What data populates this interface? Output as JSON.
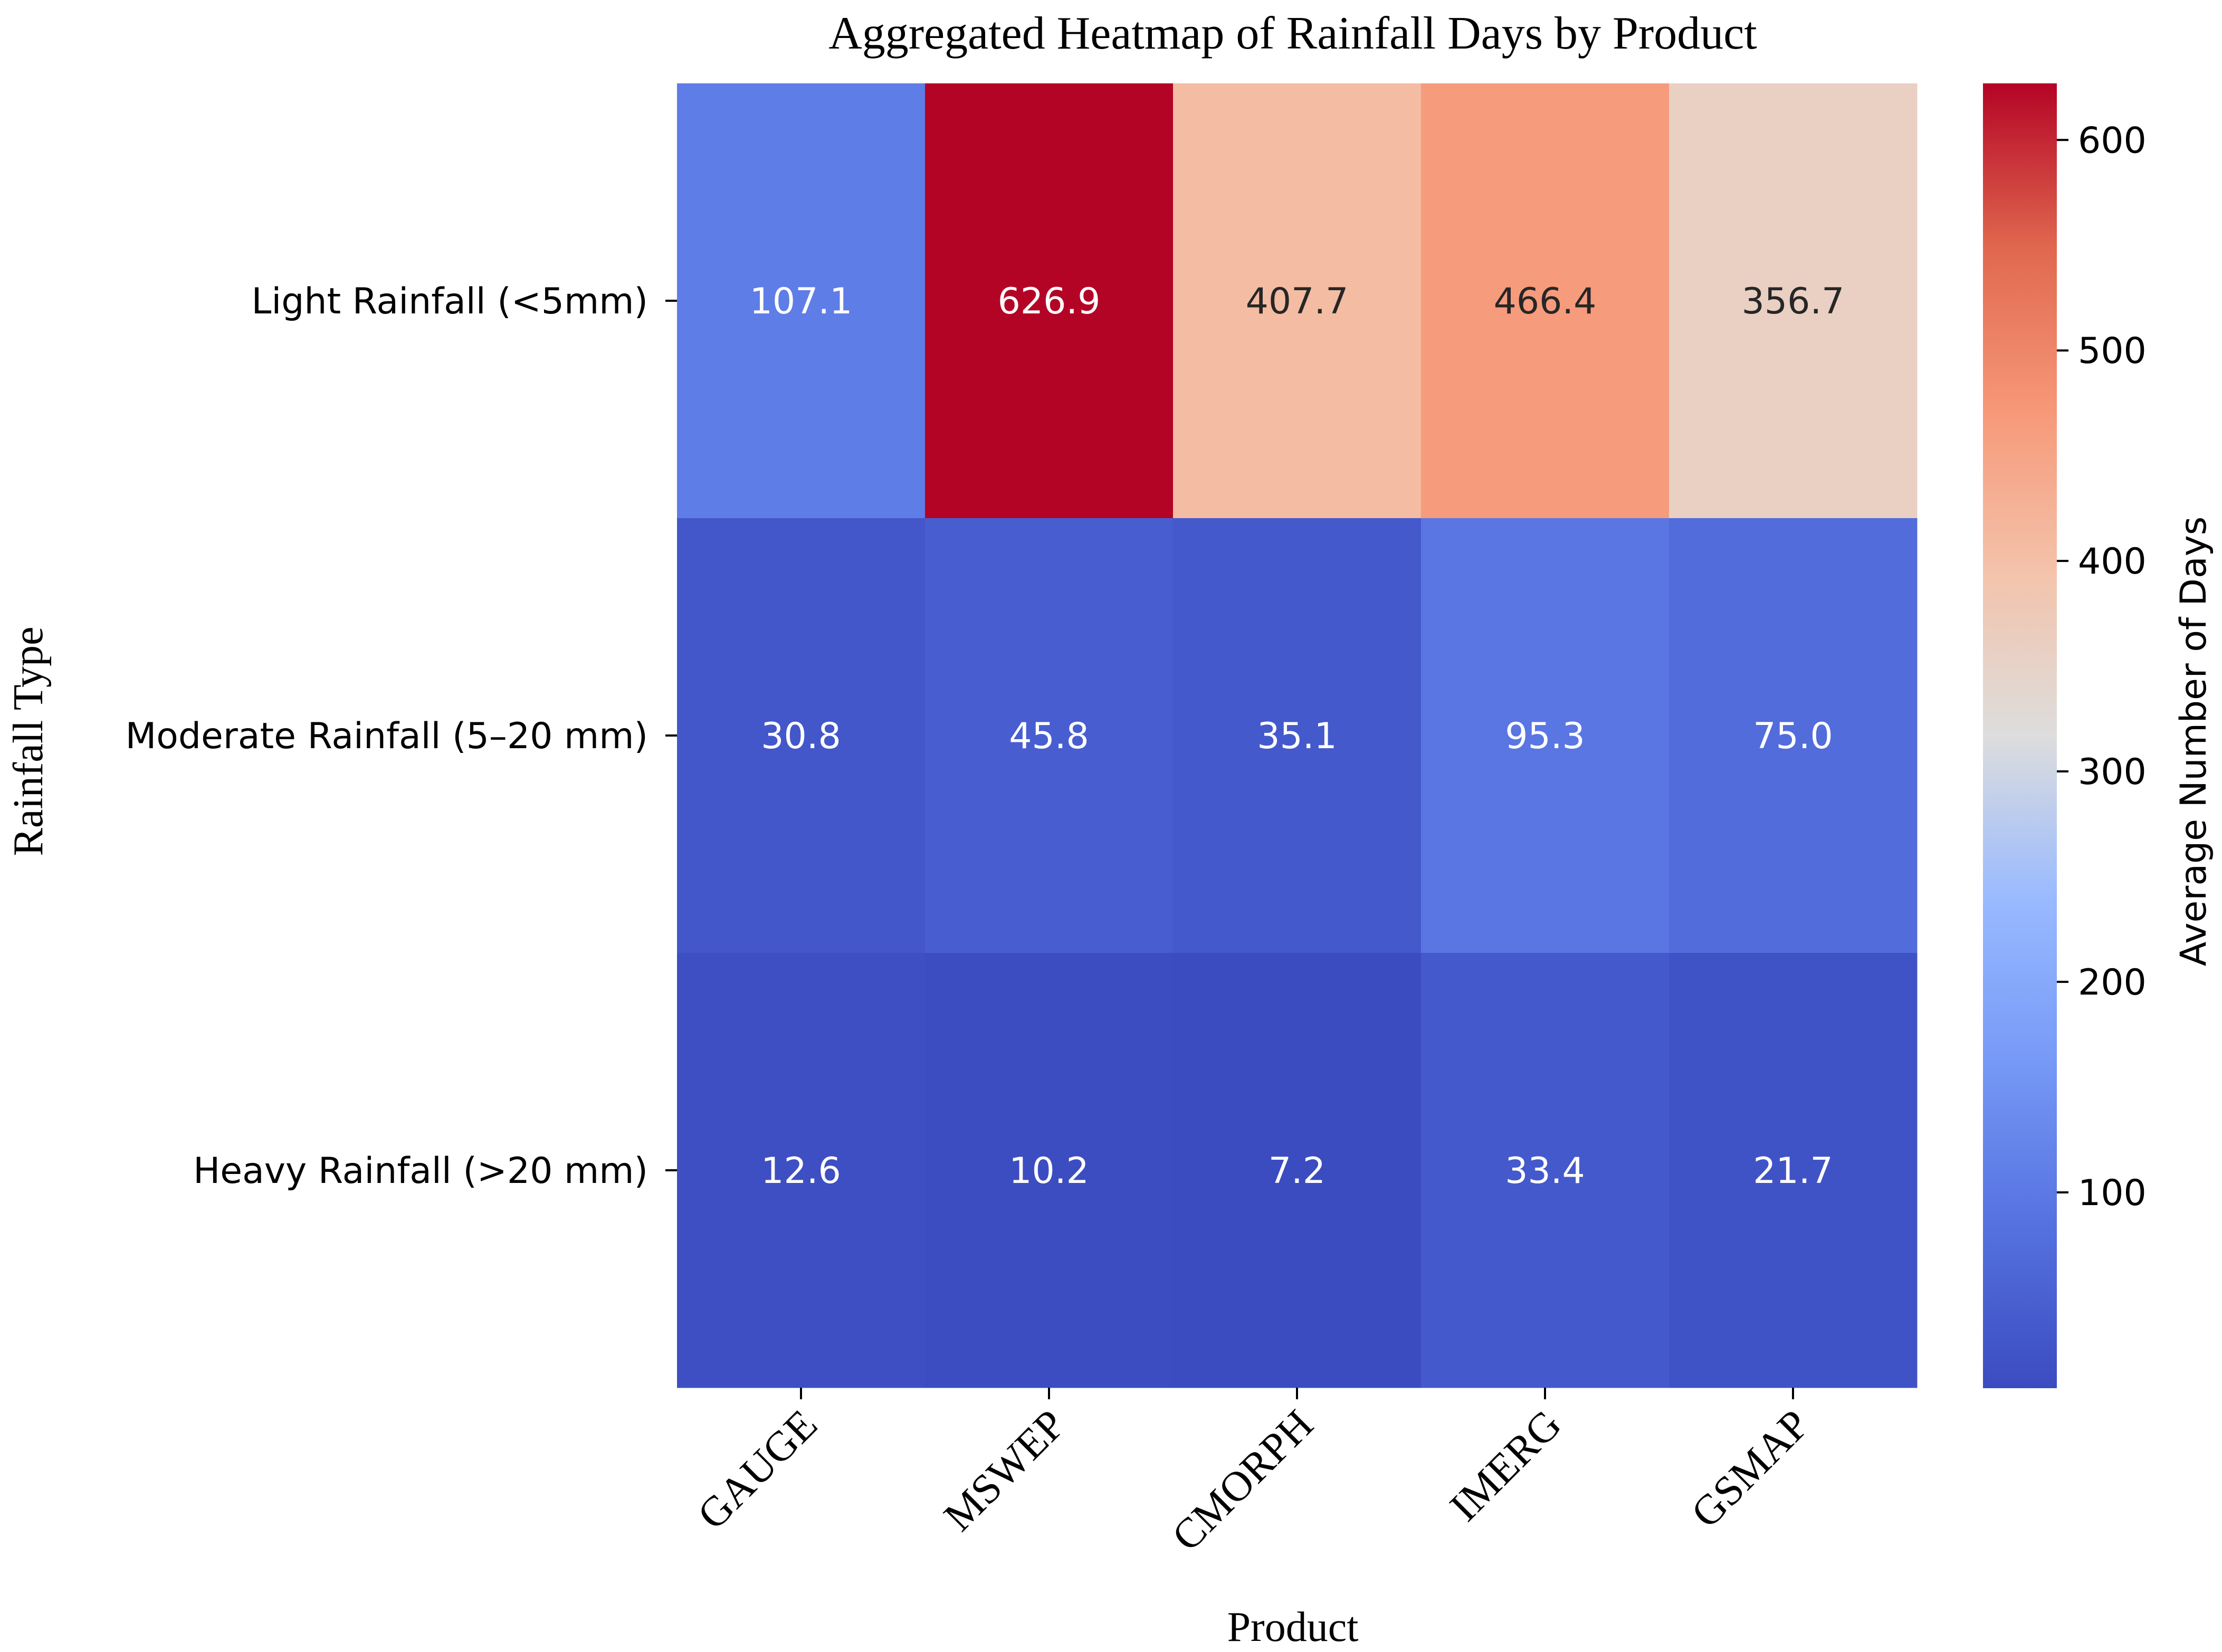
{
  "chart_data": {
    "type": "heatmap",
    "title": "Aggregated Heatmap of Rainfall Days by Product",
    "xlabel": "Product",
    "ylabel": "Rainfall Type",
    "x_categories": [
      "GAUGE",
      "MSWEP",
      "CMORPH",
      "IMERG",
      "GSMAP"
    ],
    "y_categories": [
      "Light Rainfall (<5mm)",
      "Moderate Rainfall (5–20 mm)",
      "Heavy Rainfall (>20 mm)"
    ],
    "values": [
      [
        107.1,
        626.9,
        407.7,
        466.4,
        356.7
      ],
      [
        30.8,
        45.8,
        35.1,
        95.3,
        75.0
      ],
      [
        12.6,
        10.2,
        7.2,
        33.4,
        21.7
      ]
    ],
    "value_labels": [
      [
        "107.1",
        "626.9",
        "407.7",
        "466.4",
        "356.7"
      ],
      [
        "30.8",
        "45.8",
        "35.1",
        "95.3",
        "75.0"
      ],
      [
        "12.6",
        "10.2",
        "7.2",
        "33.4",
        "21.7"
      ]
    ],
    "colorbar": {
      "label": "Average Number of Days",
      "colormap": "coolwarm",
      "vmin": 7.2,
      "vmax": 626.9,
      "ticks": [
        100,
        200,
        300,
        400,
        500,
        600
      ],
      "tick_labels": [
        "100",
        "200",
        "300",
        "400",
        "500",
        "600"
      ]
    }
  }
}
